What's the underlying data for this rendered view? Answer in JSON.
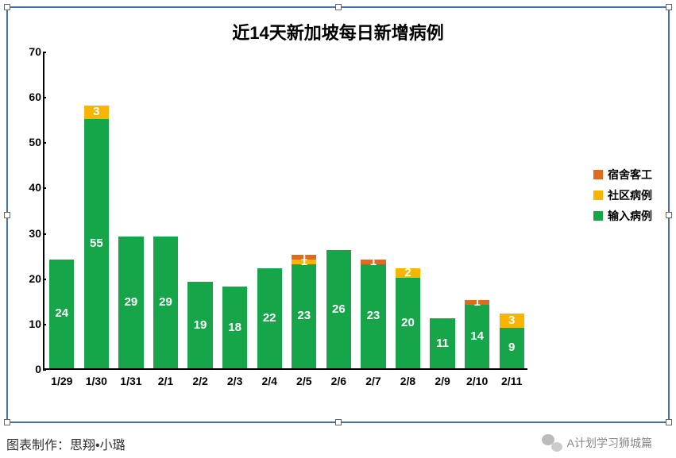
{
  "chart": {
    "type": "stacked-bar",
    "title": "近14天新加坡每日新增病例",
    "title_fontsize": 22,
    "categories": [
      "1/29",
      "1/30",
      "1/31",
      "2/1",
      "2/2",
      "2/3",
      "2/4",
      "2/5",
      "2/6",
      "2/7",
      "2/8",
      "2/9",
      "2/10",
      "2/11"
    ],
    "series": [
      {
        "name": "输入病例",
        "color": "#17a54a",
        "values": [
          24,
          55,
          29,
          29,
          19,
          18,
          22,
          23,
          26,
          23,
          20,
          11,
          14,
          9
        ]
      },
      {
        "name": "社区病例",
        "color": "#f7b500",
        "values": [
          0,
          3,
          0,
          0,
          0,
          0,
          0,
          1,
          0,
          0,
          2,
          0,
          0,
          3
        ]
      },
      {
        "name": "宿舍客工",
        "color": "#e06b1f",
        "values": [
          0,
          0,
          0,
          0,
          0,
          0,
          0,
          1,
          0,
          1,
          0,
          0,
          1,
          0
        ]
      }
    ],
    "legend_order": [
      "宿舍客工",
      "社区病例",
      "输入病例"
    ],
    "ylim": [
      0,
      70
    ],
    "ytick_step": 10,
    "yticks": [
      0,
      10,
      20,
      30,
      40,
      50,
      60,
      70
    ],
    "bar_width_ratio": 0.72,
    "background_color": "#ffffff",
    "axis_color": "#000000",
    "axis_font_size": 14,
    "label_in_bar_color": "#ffffff",
    "label_in_bar_fontsize": 15,
    "frame_border_color": "#4a6fa5"
  },
  "footer": {
    "credit": "图表制作：思翔•小璐",
    "fontsize": 16
  },
  "wechat_tag": {
    "text": "A计划学习狮城篇"
  }
}
